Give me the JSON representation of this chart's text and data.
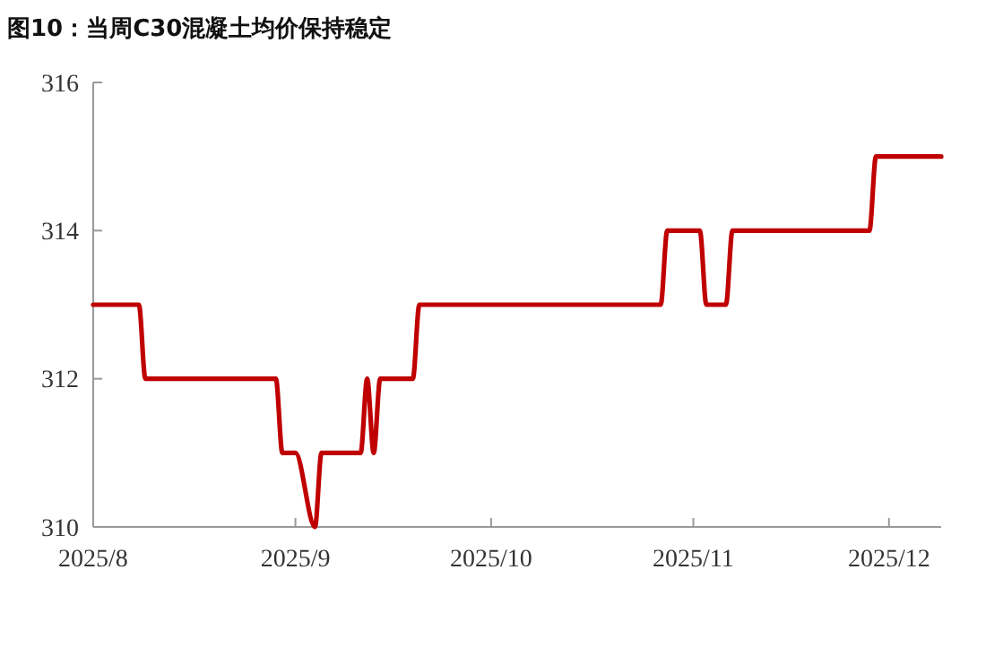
{
  "chart_data": {
    "type": "line",
    "title": "图10：当周C30混凝土均价保持稳定",
    "x": [
      "2025-08-01",
      "2025-08-08",
      "2025-08-09",
      "2025-08-29",
      "2025-08-30",
      "2025-09-01",
      "2025-09-04",
      "2025-09-05",
      "2025-09-11",
      "2025-09-12",
      "2025-09-13",
      "2025-09-14",
      "2025-09-19",
      "2025-09-20",
      "2025-10-27",
      "2025-10-28",
      "2025-11-02",
      "2025-11-03",
      "2025-11-06",
      "2025-11-07",
      "2025-11-28",
      "2025-11-29",
      "2025-12-09"
    ],
    "series": [
      {
        "color": "#c00000",
        "values": [
          313,
          313,
          312,
          312,
          311,
          311,
          310,
          311,
          311,
          312,
          311,
          312,
          312,
          313,
          313,
          314,
          314,
          313,
          313,
          314,
          314,
          315,
          315
        ]
      }
    ],
    "xlim": [
      "2025-08-01",
      "2025-12-09"
    ],
    "xticks": [
      {
        "value": "2025-08-01",
        "label": "2025/8"
      },
      {
        "value": "2025-09-01",
        "label": "2025/9"
      },
      {
        "value": "2025-10-01",
        "label": "2025/10"
      },
      {
        "value": "2025-11-01",
        "label": "2025/11"
      },
      {
        "value": "2025-12-01",
        "label": "2025/12"
      }
    ],
    "ylim": [
      310,
      316
    ],
    "yticks": [
      310,
      312,
      314,
      316
    ],
    "grid": false,
    "marker": "none",
    "line_style": "solid"
  }
}
